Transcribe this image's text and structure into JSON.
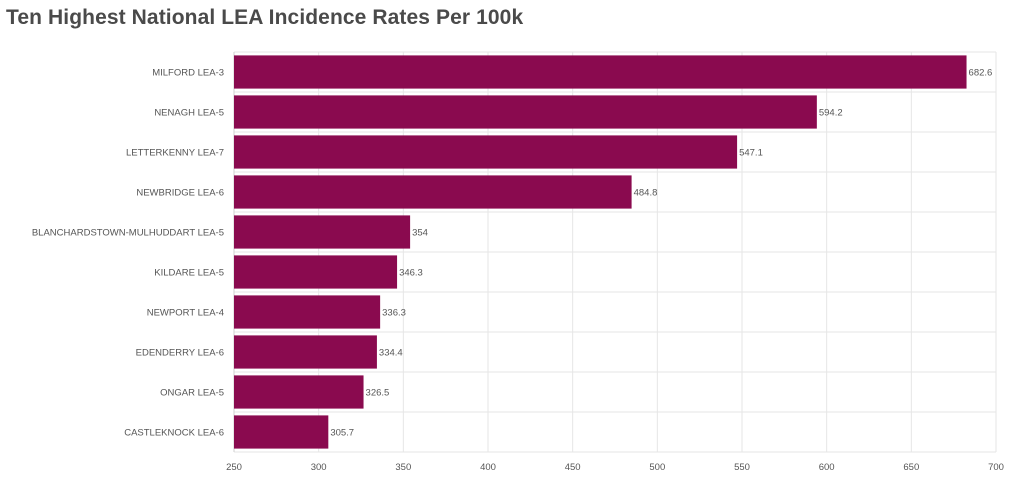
{
  "page": {
    "title": "Ten Highest National LEA Incidence Rates Per 100k"
  },
  "colors": {
    "bar": "#8a0a4f",
    "grid": "#e6e6e6",
    "text": "#555555"
  },
  "chart_data": {
    "type": "bar",
    "orientation": "horizontal",
    "title": "Ten Highest National LEA Incidence Rates Per 100k",
    "xlabel": "",
    "ylabel": "",
    "categories": [
      "MILFORD LEA-3",
      "NENAGH LEA-5",
      "LETTERKENNY LEA-7",
      "NEWBRIDGE LEA-6",
      "BLANCHARDSTOWN-MULHUDDART LEA-5",
      "KILDARE LEA-5",
      "NEWPORT LEA-4",
      "EDENDERRY LEA-6",
      "ONGAR LEA-5",
      "CASTLEKNOCK LEA-6"
    ],
    "values": [
      682.6,
      594.2,
      547.1,
      484.8,
      354,
      346.3,
      336.3,
      334.4,
      326.5,
      305.7
    ],
    "value_labels": [
      "682.6",
      "594.2",
      "547.1",
      "484.8",
      "354",
      "346.3",
      "336.3",
      "334.4",
      "326.5",
      "305.7"
    ],
    "xlim": [
      250,
      700
    ],
    "xticks": [
      250,
      300,
      350,
      400,
      450,
      500,
      550,
      600,
      650,
      700
    ],
    "xtick_labels": [
      "250",
      "300",
      "350",
      "400",
      "450",
      "500",
      "550",
      "600",
      "650",
      "700"
    ],
    "grid": true,
    "legend": "none"
  }
}
